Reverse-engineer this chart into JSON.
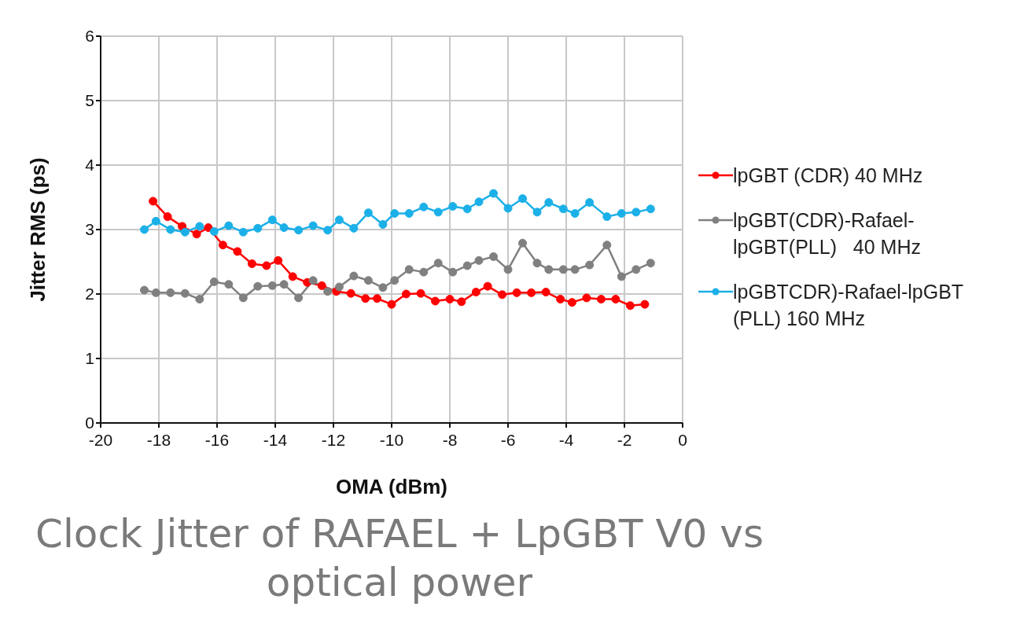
{
  "chart_data": {
    "type": "line",
    "title": "Clock Jitter of RAFAEL + LpGBT V0 vs optical power",
    "xlabel": "OMA (dBm)",
    "ylabel": "Jitter RMS (ps)",
    "xlim": [
      -20,
      0
    ],
    "xticks": [
      -20,
      -18,
      -16,
      -14,
      -12,
      -10,
      -8,
      -6,
      -4,
      -2,
      0
    ],
    "ylim": [
      0,
      6
    ],
    "yticks": [
      0,
      1,
      2,
      3,
      4,
      5,
      6
    ],
    "grid": true,
    "legend": "right",
    "marker": "circle",
    "line_style": "solid",
    "series": [
      {
        "name": "lpGBT (CDR) 40 MHz",
        "color": "#ff0000",
        "x": [
          -18.2,
          -17.7,
          -17.2,
          -16.7,
          -16.3,
          -15.8,
          -15.3,
          -14.8,
          -14.3,
          -13.9,
          -13.4,
          -12.9,
          -12.4,
          -11.9,
          -11.4,
          -10.9,
          -10.5,
          -10.0,
          -9.5,
          -9.0,
          -8.5,
          -8.0,
          -7.6,
          -7.1,
          -6.7,
          -6.2,
          -5.7,
          -5.2,
          -4.7,
          -4.2,
          -3.8,
          -3.3,
          -2.8,
          -2.3,
          -1.8,
          -1.3
        ],
        "values": [
          3.44,
          3.2,
          3.05,
          2.93,
          3.03,
          2.76,
          2.66,
          2.47,
          2.44,
          2.52,
          2.27,
          2.18,
          2.13,
          2.04,
          2.01,
          1.93,
          1.93,
          1.84,
          2.0,
          2.01,
          1.89,
          1.92,
          1.88,
          2.03,
          2.12,
          1.99,
          2.02,
          2.02,
          2.03,
          1.92,
          1.87,
          1.94,
          1.92,
          1.92,
          1.82,
          1.84
        ]
      },
      {
        "name": "lpGBT(CDR)-Rafael-lpGBT(PLL)   40 MHz",
        "color": "#808080",
        "x": [
          -18.5,
          -18.1,
          -17.6,
          -17.1,
          -16.6,
          -16.1,
          -15.6,
          -15.1,
          -14.6,
          -14.1,
          -13.7,
          -13.2,
          -12.7,
          -12.2,
          -11.8,
          -11.3,
          -10.8,
          -10.3,
          -9.9,
          -9.4,
          -8.9,
          -8.4,
          -7.9,
          -7.4,
          -7.0,
          -6.5,
          -6.0,
          -5.5,
          -5.0,
          -4.6,
          -4.1,
          -3.7,
          -3.2,
          -2.6,
          -2.1,
          -1.6,
          -1.1
        ],
        "values": [
          2.06,
          2.02,
          2.02,
          2.01,
          1.92,
          2.19,
          2.15,
          1.94,
          2.12,
          2.13,
          2.15,
          1.94,
          2.21,
          2.04,
          2.11,
          2.28,
          2.21,
          2.1,
          2.21,
          2.38,
          2.34,
          2.48,
          2.34,
          2.44,
          2.52,
          2.58,
          2.38,
          2.79,
          2.48,
          2.38,
          2.38,
          2.38,
          2.45,
          2.76,
          2.27,
          2.38,
          2.48
        ]
      },
      {
        "name": "lpGBTCDR)-Rafael-lpGBT (PLL) 160 MHz",
        "color": "#1cb0e8",
        "x": [
          -18.5,
          -18.1,
          -17.6,
          -17.1,
          -16.6,
          -16.1,
          -15.6,
          -15.1,
          -14.6,
          -14.1,
          -13.7,
          -13.2,
          -12.7,
          -12.2,
          -11.8,
          -11.3,
          -10.8,
          -10.3,
          -9.9,
          -9.4,
          -8.9,
          -8.4,
          -7.9,
          -7.4,
          -7.0,
          -6.5,
          -6.0,
          -5.5,
          -5.0,
          -4.6,
          -4.1,
          -3.7,
          -3.2,
          -2.6,
          -2.1,
          -1.6,
          -1.1
        ],
        "values": [
          3.0,
          3.13,
          3.0,
          2.96,
          3.05,
          2.97,
          3.06,
          2.96,
          3.02,
          3.15,
          3.03,
          2.99,
          3.06,
          2.99,
          3.15,
          3.02,
          3.26,
          3.08,
          3.25,
          3.25,
          3.35,
          3.27,
          3.36,
          3.32,
          3.43,
          3.56,
          3.33,
          3.48,
          3.27,
          3.42,
          3.32,
          3.25,
          3.42,
          3.2,
          3.25,
          3.27,
          3.32
        ]
      }
    ]
  }
}
